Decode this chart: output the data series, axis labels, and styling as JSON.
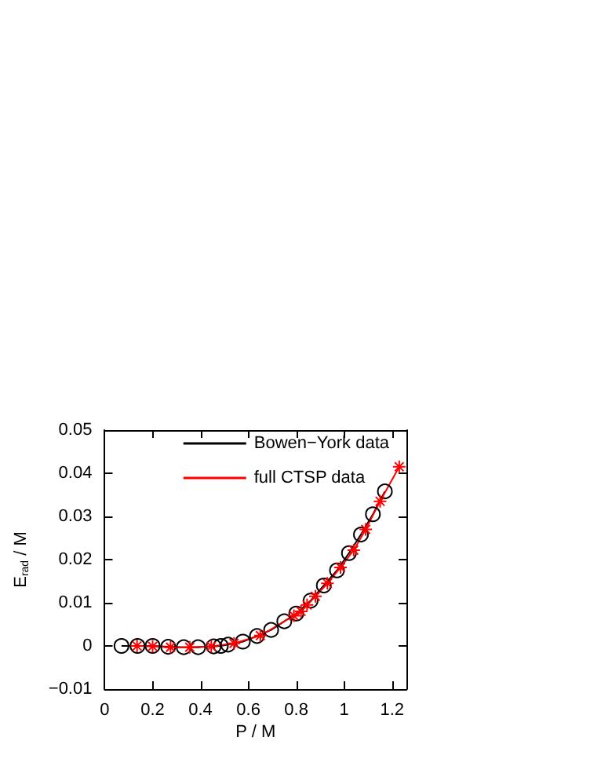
{
  "chart_data": {
    "type": "line",
    "xlabel": "P / M",
    "ylabel": "E$_{rad}$ / M",
    "xlim": [
      0,
      1.26
    ],
    "xticks": [
      0,
      0.2,
      0.4,
      0.6,
      0.8,
      1,
      1.2
    ],
    "ylim": [
      -0.01,
      0.05
    ],
    "yticks": [
      -0.01,
      0,
      0.01,
      0.02,
      0.03,
      0.04,
      0.05
    ],
    "grid": false,
    "legend": "top right",
    "series": [
      {
        "name": "Bowen−York data",
        "color": "#000000",
        "marker": "circle",
        "x": [
          0.07,
          0.137,
          0.2,
          0.265,
          0.33,
          0.39,
          0.455,
          0.485,
          0.515,
          0.577,
          0.636,
          0.695,
          0.75,
          0.8,
          0.86,
          0.915,
          0.97,
          1.02,
          1.07,
          1.12,
          1.17
        ],
        "values": [
          0,
          0,
          0,
          -0.0002,
          -0.0003,
          -0.0003,
          -0.0001,
          0,
          0.0003,
          0.001,
          0.0023,
          0.0037,
          0.0057,
          0.0075,
          0.0105,
          0.014,
          0.0175,
          0.0215,
          0.0258,
          0.0305,
          0.0358
        ]
      },
      {
        "name": "full CTSP data",
        "color": "#ff0000",
        "marker": "cross",
        "x": [
          0.135,
          0.2,
          0.275,
          0.355,
          0.445,
          0.54,
          0.65,
          0.79,
          0.82,
          0.845,
          0.88,
          0.93,
          0.985,
          1.04,
          1.09,
          1.15,
          1.23
        ],
        "values": [
          0,
          -0.0001,
          -0.0003,
          -0.0003,
          -0.0001,
          0.0006,
          0.0024,
          0.007,
          0.008,
          0.0095,
          0.0115,
          0.0145,
          0.0182,
          0.0222,
          0.027,
          0.0335,
          0.0415
        ]
      }
    ]
  }
}
